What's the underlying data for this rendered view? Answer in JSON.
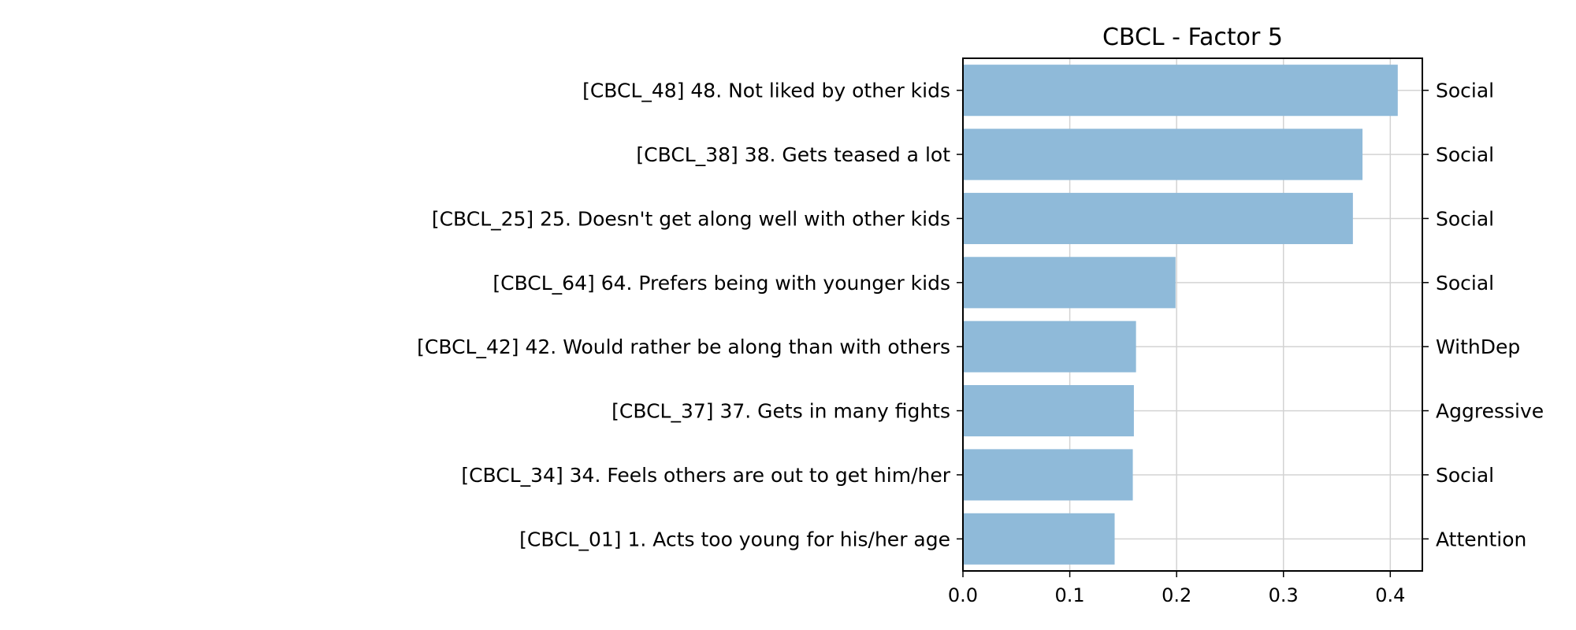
{
  "chart_data": {
    "type": "bar",
    "orientation": "horizontal",
    "title": "CBCL - Factor 5",
    "xlabel": "",
    "ylabel": "",
    "xlim": [
      0,
      0.43
    ],
    "xticks": [
      "0.0",
      "0.1",
      "0.2",
      "0.3",
      "0.4"
    ],
    "xtick_values": [
      0,
      0.1,
      0.2,
      0.3,
      0.4
    ],
    "grid": true,
    "bar_color": "#8fbad9",
    "categories": [
      "[CBCL_48] 48. Not liked by other kids",
      "[CBCL_38] 38. Gets teased a lot",
      "[CBCL_25] 25. Doesn't get along well with other kids",
      "[CBCL_64] 64. Prefers being with younger kids",
      "[CBCL_42] 42. Would rather be along than with others",
      "[CBCL_37] 37. Gets in many fights",
      "[CBCL_34] 34. Feels others are out to get him/her",
      "[CBCL_01] 1. Acts too young for his/her age"
    ],
    "values": [
      0.407,
      0.374,
      0.365,
      0.199,
      0.162,
      0.16,
      0.159,
      0.142
    ],
    "right_labels": [
      "Social",
      "Social",
      "Social",
      "Social",
      "WithDep",
      "Aggressive",
      "Social",
      "Attention"
    ]
  }
}
